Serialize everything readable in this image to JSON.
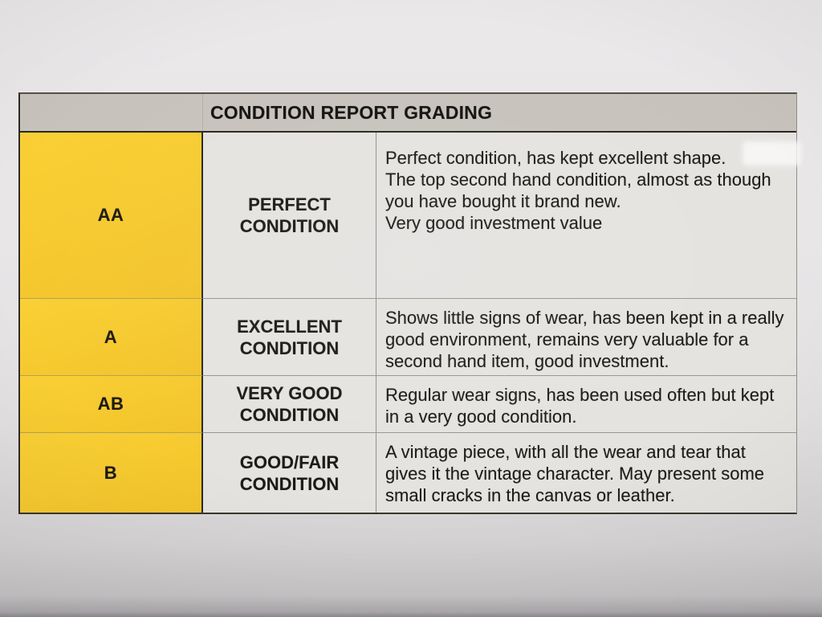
{
  "table": {
    "title": "CONDITION REPORT GRADING",
    "rows": [
      {
        "grade": "AA",
        "condition_line1": "PERFECT",
        "condition_line2": "CONDITION",
        "desc": [
          "Perfect condition, has kept excellent shape.",
          "The top second hand condition, almost as though you have bought it brand new.",
          "Very good investment value"
        ]
      },
      {
        "grade": "A",
        "condition_line1": "EXCELLENT",
        "condition_line2": "CONDITION",
        "desc": [
          "Shows little signs of wear, has been kept in a really good environment, remains very valuable for a second hand item, good investment."
        ]
      },
      {
        "grade": "AB",
        "condition_line1": "VERY GOOD",
        "condition_line2": "CONDITION",
        "desc": [
          "Regular wear signs, has been used often but kept in a very good condition."
        ]
      },
      {
        "grade": "B",
        "condition_line1": "GOOD/FAIR",
        "condition_line2": "CONDITION",
        "desc": [
          "A vintage piece, with all the wear and tear that gives it the vintage character. May present some small cracks in the canvas or leather."
        ]
      }
    ],
    "colors": {
      "header_bg": "#c7c3bc",
      "grade_bg": "#f6c92f",
      "cell_bg": "#e5e3e0",
      "paper_bg": "#e8e6e7",
      "text": "#1c1a17",
      "border_dark": "#2b2823",
      "border_light": "#94918b"
    }
  }
}
